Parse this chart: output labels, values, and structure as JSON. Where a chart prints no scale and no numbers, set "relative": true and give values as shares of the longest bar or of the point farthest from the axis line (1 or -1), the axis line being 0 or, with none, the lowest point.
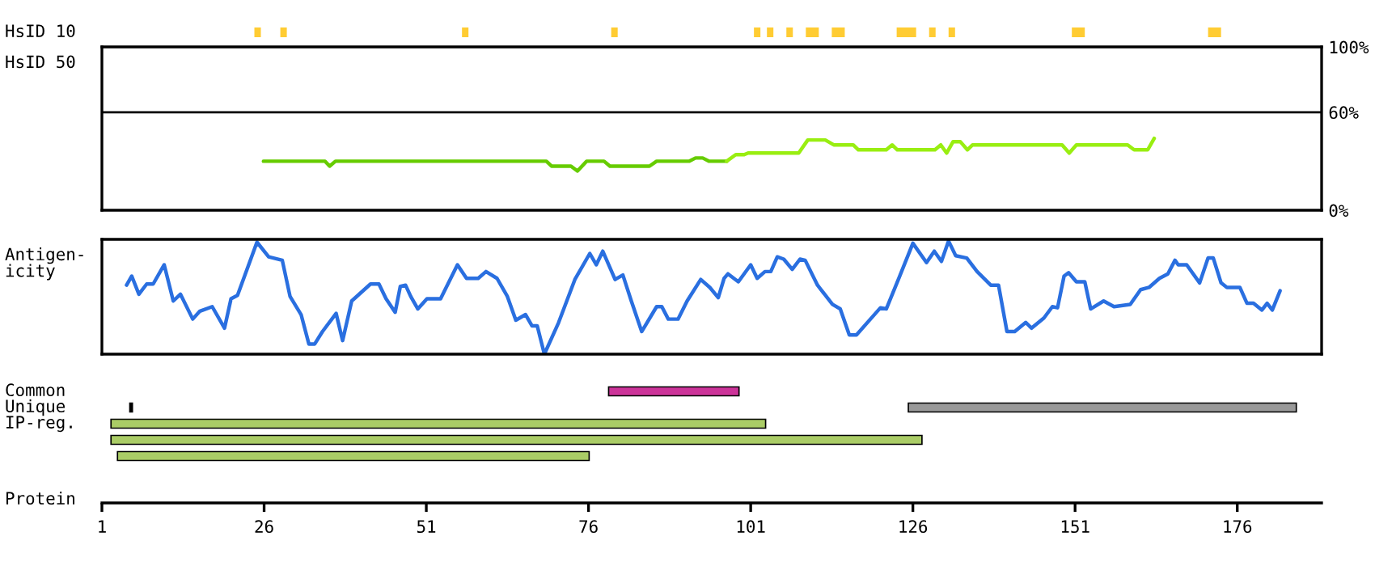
{
  "chart_data": [
    {
      "type": "bar",
      "orientation": "horizontal",
      "categories": [
        "HsID 10"
      ],
      "xlim": [
        1,
        189
      ],
      "tick_labels": "y",
      "series": [
        {
          "color": "#ffcc33",
          "base": [
            24.5
          ],
          "values": [
            1
          ]
        },
        {
          "color": "#ffcc33",
          "base": [
            28.5
          ],
          "values": [
            1
          ]
        },
        {
          "color": "#ffcc33",
          "base": [
            56.5
          ],
          "values": [
            1
          ]
        },
        {
          "color": "#ffcc33",
          "base": [
            79.5
          ],
          "values": [
            1
          ]
        },
        {
          "color": "#ffcc33",
          "base": [
            101.5
          ],
          "values": [
            1
          ]
        },
        {
          "color": "#ffcc33",
          "base": [
            103.5
          ],
          "values": [
            1
          ]
        },
        {
          "color": "#ffcc33",
          "base": [
            106.5
          ],
          "values": [
            1
          ]
        },
        {
          "color": "#ffcc33",
          "base": [
            109.5
          ],
          "values": [
            2
          ]
        },
        {
          "color": "#ffcc33",
          "base": [
            113.5
          ],
          "values": [
            2
          ]
        },
        {
          "color": "#ffcc33",
          "base": [
            123.5
          ],
          "values": [
            3
          ]
        },
        {
          "color": "#ffcc33",
          "base": [
            128.5
          ],
          "values": [
            1
          ]
        },
        {
          "color": "#ffcc33",
          "base": [
            131.5
          ],
          "values": [
            1
          ]
        },
        {
          "color": "#ffcc33",
          "base": [
            150.5
          ],
          "values": [
            2
          ]
        },
        {
          "color": "#ffcc33",
          "base": [
            171.5
          ],
          "values": [
            2
          ]
        }
      ]
    },
    {
      "type": "line",
      "ylabel": "HsID 50",
      "xlim": [
        1,
        189
      ],
      "ylim": [
        0,
        100
      ],
      "tick_labels": "y",
      "yticks": [
        {
          "value": 0,
          "label": "0%"
        },
        {
          "value": 60,
          "label": "60%"
        },
        {
          "value": 100,
          "label": "100%"
        }
      ],
      "ref_lines": [
        {
          "axis": "y",
          "value": 60,
          "color": "#000000"
        }
      ],
      "series": [
        {
          "color": "#66cc00",
          "x": [
            25.9,
            35.4,
            36.1,
            37.0,
            69.5,
            70.3,
            73.3,
            74.3,
            75.7,
            78.4,
            79.3,
            85.4,
            86.5,
            91.5,
            92.5,
            93.6,
            94.6,
            97.3
          ],
          "values": [
            30,
            30,
            27,
            30,
            30,
            27,
            27,
            24,
            30,
            30,
            27,
            27,
            30,
            30,
            32,
            32,
            30,
            30
          ]
        },
        {
          "color": "#99ee11",
          "x": [
            97.3,
            98.7,
            100,
            100.6,
            108.4,
            109.8,
            112.5,
            113.8,
            116.8,
            117.6,
            121.9,
            122.8,
            123.6,
            129.4,
            130.3,
            131.2,
            132.2,
            133.3,
            134.4,
            135.2,
            149,
            150.1,
            151.2,
            159.1,
            160.1,
            162.2,
            163.2
          ],
          "values": [
            30,
            34,
            34,
            35,
            35,
            43,
            43,
            40,
            40,
            37,
            37,
            40,
            37,
            37,
            40,
            35,
            42,
            42,
            37,
            40,
            40,
            35,
            40,
            40,
            37,
            37,
            44
          ]
        }
      ]
    },
    {
      "type": "line",
      "ylabel": "Antigen-\nicity",
      "relative": true,
      "xlim": [
        1,
        189
      ],
      "tick_labels": false,
      "series": [
        {
          "color": "#2a6fe0",
          "x": [
            4.8,
            5.6,
            6.7,
            7.9,
            8.9,
            10.6,
            12.0,
            13.1,
            15.0,
            16.1,
            18.0,
            19.9,
            20.9,
            21.9,
            24.9,
            26.7,
            28.8,
            30.0,
            31.7,
            32.9,
            33.8,
            35.0,
            37.1,
            38.1,
            39.5,
            42.4,
            43.7,
            44.8,
            46.2,
            47.0,
            47.8,
            48.6,
            49.7,
            51.1,
            53.2,
            55.8,
            57.2,
            59.0,
            60.2,
            61.9,
            63.5,
            64.8,
            66.3,
            67.3,
            68.1,
            69.2,
            71.4,
            73.9,
            76.2,
            77.2,
            78.2,
            80.1,
            81.3,
            82.6,
            84.2,
            86.5,
            87.3,
            88.3,
            89.8,
            91.2,
            93.3,
            94.7,
            96.0,
            96.9,
            97.5,
            99.1,
            101.0,
            102.0,
            103.2,
            104.1,
            105.1,
            106.1,
            107.4,
            108.6,
            109.4,
            111.3,
            113.6,
            114.8,
            116.2,
            117.3,
            121.0,
            121.9,
            123.9,
            126.0,
            128.1,
            129.3,
            130.4,
            131.5,
            132.6,
            134.3,
            135.9,
            138.0,
            139.2,
            140.5,
            141.7,
            143.4,
            144.3,
            146.2,
            147.5,
            148.3,
            149.3,
            150.0,
            151.2,
            152.5,
            153.4,
            155.4,
            157.0,
            159.5,
            161.1,
            162.4,
            164.0,
            165.3,
            166.4,
            166.9,
            168.2,
            170.2,
            171.5,
            172.3,
            173.5,
            174.4,
            176.4,
            177.5,
            178.5,
            179.8,
            180.6,
            181.4,
            182.6
          ],
          "values": [
            0.61,
            0.69,
            0.53,
            0.62,
            0.62,
            0.79,
            0.47,
            0.53,
            0.31,
            0.38,
            0.42,
            0.23,
            0.49,
            0.52,
            0.99,
            0.86,
            0.83,
            0.51,
            0.35,
            0.09,
            0.09,
            0.2,
            0.36,
            0.12,
            0.47,
            0.62,
            0.62,
            0.49,
            0.37,
            0.6,
            0.61,
            0.51,
            0.4,
            0.49,
            0.49,
            0.79,
            0.67,
            0.67,
            0.73,
            0.67,
            0.51,
            0.3,
            0.35,
            0.25,
            0.25,
            0,
            0.28,
            0.66,
            0.89,
            0.79,
            0.91,
            0.66,
            0.7,
            0.47,
            0.2,
            0.42,
            0.42,
            0.31,
            0.31,
            0.47,
            0.66,
            0.59,
            0.5,
            0.67,
            0.71,
            0.64,
            0.79,
            0.67,
            0.73,
            0.73,
            0.86,
            0.84,
            0.75,
            0.84,
            0.83,
            0.61,
            0.44,
            0.4,
            0.17,
            0.17,
            0.41,
            0.4,
            0.68,
            0.98,
            0.81,
            0.91,
            0.82,
            1,
            0.87,
            0.85,
            0.73,
            0.61,
            0.61,
            0.2,
            0.2,
            0.28,
            0.23,
            0.32,
            0.42,
            0.41,
            0.69,
            0.72,
            0.64,
            0.64,
            0.4,
            0.47,
            0.42,
            0.44,
            0.57,
            0.59,
            0.67,
            0.71,
            0.83,
            0.79,
            0.79,
            0.63,
            0.85,
            0.85,
            0.63,
            0.59,
            0.59,
            0.45,
            0.45,
            0.39,
            0.45,
            0.39,
            0.56
          ]
        }
      ]
    },
    {
      "type": "bar",
      "orientation": "horizontal",
      "xlabel": "Protein",
      "categories": [
        "Common",
        "Unique",
        "IP-reg.",
        null,
        null
      ],
      "xlim": [
        1,
        189
      ],
      "xticks": [
        1,
        26,
        51,
        76,
        101,
        126,
        151,
        176
      ],
      "tick_labels": "x",
      "series": [
        {
          "colors": [
            "#cc3399",
            "#999999",
            "#aacc66",
            "#aacc66",
            "#aacc66"
          ],
          "base": [
            79.1,
            125.3,
            2.4,
            2.4,
            3.4
          ],
          "values": [
            20.1,
            59.8,
            100.9,
            125.0,
            72.7
          ]
        },
        {
          "color": "#000000",
          "base": [
            null,
            5.3,
            null,
            null,
            null
          ],
          "values": [
            null,
            0.4,
            null,
            null,
            null
          ]
        }
      ]
    }
  ]
}
